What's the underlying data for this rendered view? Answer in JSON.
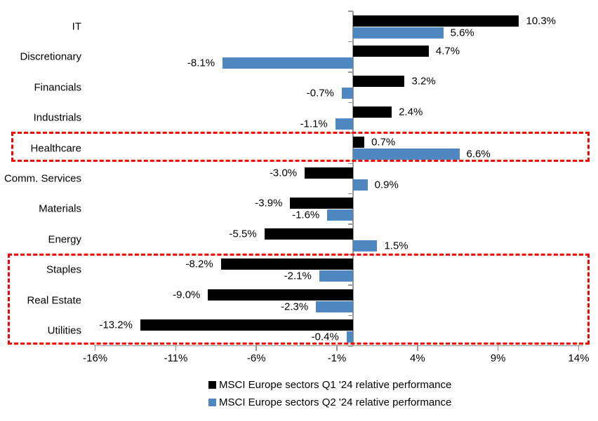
{
  "chart_data": {
    "type": "bar",
    "orientation": "horizontal",
    "title": "",
    "categories": [
      "IT",
      "Discretionary",
      "Financials",
      "Industrials",
      "Healthcare",
      "Comm. Services",
      "Materials",
      "Energy",
      "Staples",
      "Real Estate",
      "Utilities"
    ],
    "series": [
      {
        "name": "MSCI Europe sectors Q1 '24 relative performance",
        "color": "#000000",
        "values": [
          10.3,
          4.7,
          3.2,
          2.4,
          0.7,
          -3.0,
          -3.9,
          -5.5,
          -8.2,
          -9.0,
          -13.2
        ],
        "labels": [
          "10.3%",
          "4.7%",
          "3.2%",
          "2.4%",
          "0.7%",
          "-3.0%",
          "-3.9%",
          "-5.5%",
          "-8.2%",
          "-9.0%",
          "-13.2%"
        ]
      },
      {
        "name": "MSCI Europe sectors Q2 '24 relative performance",
        "color": "#4F87C1",
        "values": [
          5.6,
          -8.1,
          -0.7,
          -1.1,
          6.6,
          0.9,
          -1.6,
          1.5,
          -2.1,
          -2.3,
          -0.4
        ],
        "labels": [
          "5.6%",
          "-8.1%",
          "-0.7%",
          "-1.1%",
          "6.6%",
          "0.9%",
          "-1.6%",
          "1.5%",
          "-2.1%",
          "-2.3%",
          "-0.4%"
        ]
      }
    ],
    "x_ticks": [
      {
        "label": "-16%",
        "value": -16
      },
      {
        "label": "-11%",
        "value": -11
      },
      {
        "label": "-6%",
        "value": -6
      },
      {
        "label": "-1%",
        "value": -1
      },
      {
        "label": "4%",
        "value": 4
      },
      {
        "label": "9%",
        "value": 9
      },
      {
        "label": "14%",
        "value": 14
      }
    ],
    "xlim": [
      -16,
      14.3
    ],
    "grid": false,
    "legend_position": "bottom",
    "axis_color": "#969696",
    "highlight_color": "#ff0000",
    "highlights": [
      {
        "name": "healthcare-highlight-box",
        "from_category": "Healthcare",
        "to_category": "Healthcare"
      },
      {
        "name": "defensives-highlight-box",
        "from_category": "Staples",
        "to_category": "Utilities"
      }
    ]
  }
}
